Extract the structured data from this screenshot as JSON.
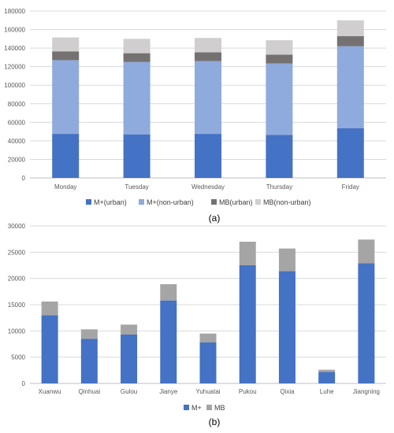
{
  "chart_data": [
    {
      "type": "bar",
      "stacked": true,
      "panel_label": "(a)",
      "categories": [
        "Monday",
        "Tuesday",
        "Wednesday",
        "Thursday",
        "Friday"
      ],
      "series": [
        {
          "name": "M+(urban)",
          "color": "#4472c4",
          "values": [
            47500,
            47000,
            47500,
            46500,
            53500
          ]
        },
        {
          "name": "M+(non-urban)",
          "color": "#8faadc",
          "values": [
            79500,
            78000,
            78500,
            77000,
            88500
          ]
        },
        {
          "name": "MB(urban)",
          "color": "#767171",
          "values": [
            9500,
            9500,
            9500,
            9500,
            11000
          ]
        },
        {
          "name": "MB(non-urban)",
          "color": "#d0cece",
          "values": [
            15000,
            15500,
            15500,
            15500,
            17000
          ]
        }
      ],
      "ylim": [
        0,
        180000
      ],
      "yticks": [
        0,
        20000,
        40000,
        60000,
        80000,
        100000,
        120000,
        140000,
        160000,
        180000
      ],
      "grid": true,
      "legend_position": "bottom"
    },
    {
      "type": "bar",
      "stacked": true,
      "panel_label": "(b)",
      "categories": [
        "Xuanwu",
        "Qinhuai",
        "Gulou",
        "Jianye",
        "Yuhuatai",
        "Pukou",
        "Qixia",
        "Luhe",
        "Jiangning"
      ],
      "series": [
        {
          "name": "M+",
          "color": "#4472c4",
          "values": [
            13000,
            8500,
            9300,
            15800,
            7800,
            22500,
            21400,
            2200,
            22900
          ]
        },
        {
          "name": "MB",
          "color": "#a5a5a5",
          "values": [
            2600,
            1800,
            1900,
            3100,
            1700,
            4500,
            4300,
            400,
            4500
          ]
        }
      ],
      "ylim": [
        0,
        30000
      ],
      "yticks": [
        0,
        5000,
        10000,
        15000,
        20000,
        25000,
        30000
      ],
      "grid": true,
      "legend_position": "bottom"
    }
  ]
}
